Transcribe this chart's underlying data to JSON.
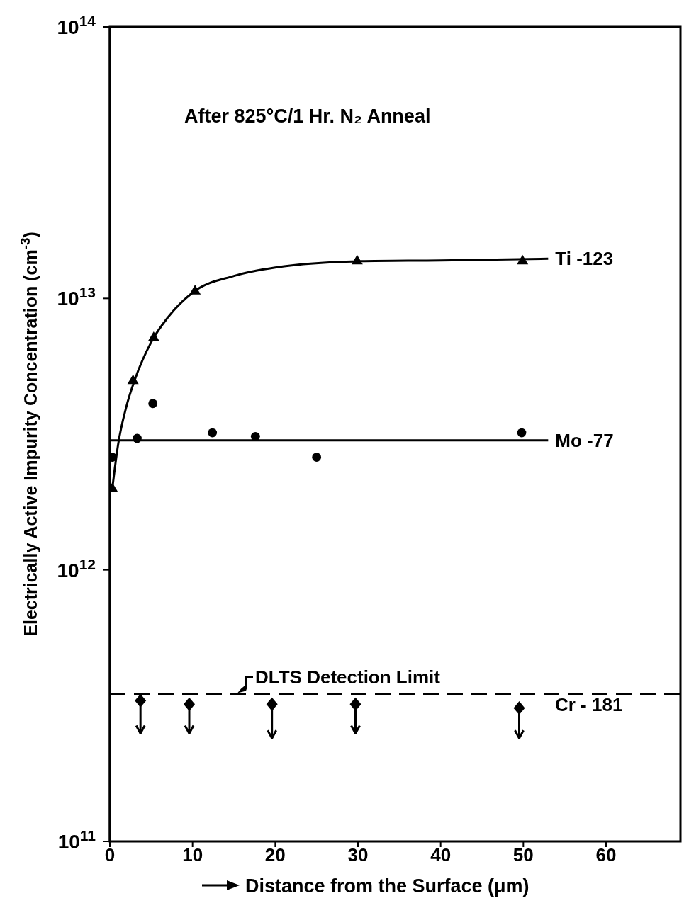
{
  "chart_data": {
    "type": "scatter",
    "xlabel": "Distance from the Surface (μm)",
    "ylabel": "Electrically Active Impurity Concentration (cm$^{-3}$)",
    "annotations": [
      "After 825°C/1 Hr. N₂ Anneal"
    ],
    "log": "y",
    "xlim": [
      0,
      69
    ],
    "xticks": [
      0,
      10,
      20,
      30,
      40,
      50,
      60
    ],
    "ylim": [
      100000000000.0,
      100000000000000.0
    ],
    "yticks": [
      {
        "value": 100000000000.0,
        "label": "10$^{11}$"
      },
      {
        "value": 1000000000000.0,
        "label": "10$^{12}$"
      },
      {
        "value": 10000000000000.0,
        "label": "10$^{13}$"
      },
      {
        "value": 100000000000000.0,
        "label": "10$^{14}$"
      }
    ],
    "ref_lines": [
      {
        "axis": "y",
        "value": 350000000000.0,
        "label": "DLTS Detection Limit",
        "color": "#000000",
        "line_style": "dashed"
      }
    ],
    "series": [
      {
        "color": "#000000",
        "marker": "triangle",
        "x": [
          0.3,
          2.8,
          5.3,
          10.3,
          29.9,
          49.9
        ],
        "values": [
          2000000000000.0,
          5000000000000.0,
          7200000000000.0,
          10700000000000.0,
          13800000000000.0,
          13800000000000.0
        ]
      },
      {
        "type": "line",
        "name": "Ti -123",
        "color": "#000000",
        "line_style": "solid",
        "x": [
          0.3,
          1,
          2,
          3,
          5,
          7,
          10,
          15,
          20,
          30,
          40,
          53
        ],
        "values": [
          2000000000000.0,
          2900000000000.0,
          4000000000000.0,
          5000000000000.0,
          6900000000000.0,
          8500000000000.0,
          10500000000000.0,
          12100000000000.0,
          13000000000000.0,
          13700000000000.0,
          13800000000000.0,
          14000000000000.0
        ]
      },
      {
        "color": "#000000",
        "marker": "circle",
        "x": [
          0.3,
          3.3,
          5.2,
          12.4,
          17.6,
          25,
          49.8
        ],
        "values": [
          2600000000000.0,
          3050000000000.0,
          4100000000000.0,
          3200000000000.0,
          3100000000000.0,
          2600000000000.0,
          3200000000000.0
        ]
      },
      {
        "type": "line",
        "name": "Mo -77",
        "color": "#000000",
        "line_style": "solid",
        "x": [
          0,
          53
        ],
        "values": [
          3000000000000.0,
          3000000000000.0
        ]
      },
      {
        "name": "Cr - 181",
        "color": "#000000",
        "marker": "diamond",
        "x": [
          3.7,
          9.6,
          19.6,
          29.7,
          49.5
        ],
        "values": [
          330000000000.0,
          320000000000.0,
          320000000000.0,
          320000000000.0,
          310000000000.0
        ],
        "errors": [
          [
            250000000000.0,
            330000000000.0
          ],
          [
            250000000000.0,
            320000000000.0
          ],
          [
            240000000000.0,
            320000000000.0
          ],
          [
            250000000000.0,
            320000000000.0
          ],
          [
            240000000000.0,
            310000000000.0
          ]
        ]
      }
    ]
  }
}
